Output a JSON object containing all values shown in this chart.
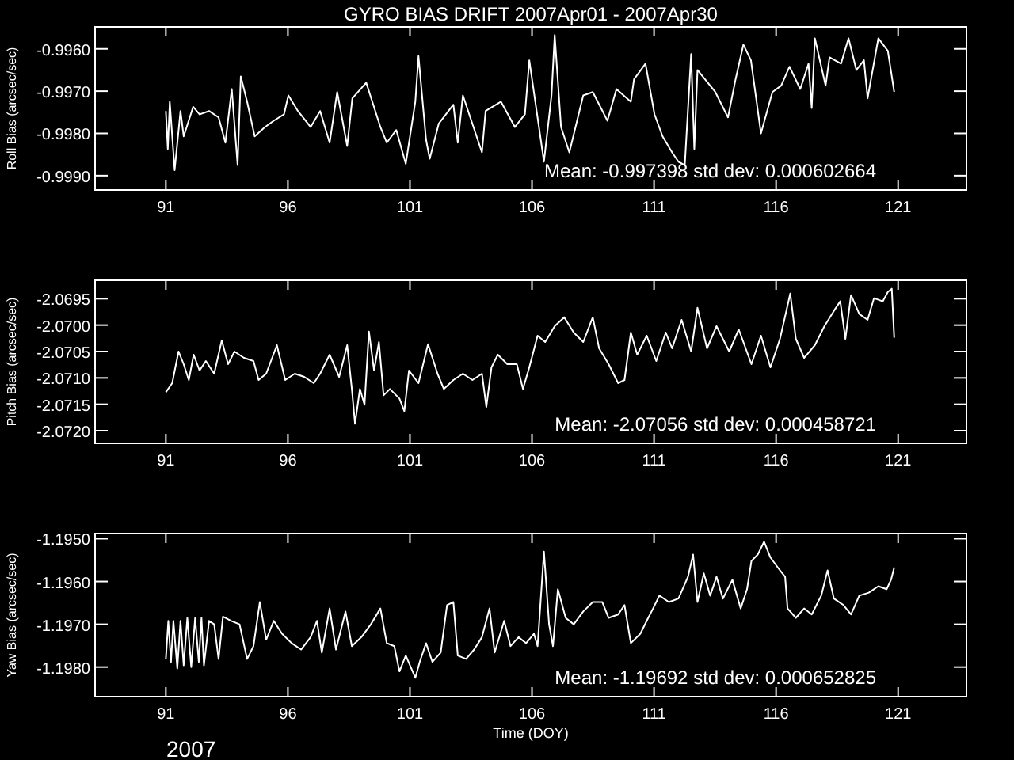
{
  "chart_data": [
    {
      "type": "line",
      "title": "GYRO BIAS DRIFT 2007Apr01 - 2007Apr30",
      "ylabel": "Roll Bias (arcsec/sec)",
      "xlim": [
        88.1,
        123.8
      ],
      "xticks": [
        91,
        96,
        101,
        106,
        111,
        116,
        121
      ],
      "ylim": [
        -0.99934,
        -0.99548
      ],
      "yticks": [
        {
          "value": -0.996,
          "label": "-0.9960"
        },
        {
          "value": -0.997,
          "label": "-0.9970"
        },
        {
          "value": -0.998,
          "label": "-0.9980"
        },
        {
          "value": -0.999,
          "label": "-0.9990"
        }
      ],
      "annotations": [
        "Mean: -0.997398 std dev: 0.000602664"
      ],
      "series": [
        {
          "color": "#ffffff",
          "x": [
            91.0,
            91.08,
            91.16,
            91.36,
            91.6,
            91.73,
            92.12,
            92.38,
            92.77,
            93.16,
            93.44,
            93.7,
            93.94,
            94.07,
            94.33,
            94.64,
            95.06,
            95.42,
            95.84,
            96.02,
            96.41,
            96.93,
            97.32,
            97.71,
            98.02,
            98.43,
            98.64,
            99.21,
            99.79,
            100.05,
            100.44,
            100.83,
            101.22,
            101.35,
            101.66,
            101.81,
            102.18,
            102.78,
            102.96,
            103.17,
            103.95,
            104.1,
            104.73,
            105.3,
            105.71,
            105.89,
            106.49,
            106.8,
            106.93,
            107.19,
            107.53,
            108.1,
            108.49,
            109.09,
            109.46,
            110.05,
            110.18,
            110.65,
            111.02,
            111.35,
            111.74,
            112.0,
            112.26,
            112.52,
            112.65,
            112.78,
            113.51,
            114.03,
            114.34,
            114.66,
            114.97,
            115.38,
            115.85,
            116.21,
            116.55,
            116.99,
            117.33,
            117.46,
            117.59,
            118.03,
            118.19,
            118.66,
            118.97,
            119.29,
            119.6,
            119.75,
            120.19,
            120.58,
            120.84
          ],
          "values": [
            -0.99747,
            -0.99837,
            -0.99725,
            -0.99887,
            -0.99747,
            -0.99807,
            -0.99737,
            -0.99755,
            -0.99747,
            -0.99762,
            -0.99822,
            -0.99695,
            -0.99875,
            -0.99665,
            -0.99725,
            -0.99807,
            -0.99785,
            -0.9977,
            -0.99755,
            -0.9971,
            -0.99747,
            -0.99785,
            -0.99747,
            -0.99822,
            -0.99702,
            -0.9983,
            -0.99717,
            -0.9968,
            -0.99785,
            -0.99822,
            -0.99792,
            -0.99872,
            -0.99725,
            -0.99617,
            -0.99815,
            -0.9986,
            -0.99777,
            -0.99732,
            -0.99822,
            -0.9971,
            -0.99845,
            -0.99747,
            -0.99725,
            -0.99785,
            -0.99755,
            -0.99627,
            -0.99867,
            -0.9971,
            -0.99567,
            -0.99785,
            -0.99845,
            -0.9971,
            -0.99702,
            -0.9977,
            -0.99695,
            -0.99725,
            -0.99672,
            -0.99635,
            -0.99755,
            -0.99807,
            -0.99845,
            -0.99867,
            -0.99875,
            -0.99612,
            -0.99837,
            -0.9965,
            -0.99702,
            -0.99762,
            -0.99672,
            -0.9959,
            -0.99627,
            -0.998,
            -0.99702,
            -0.99687,
            -0.99642,
            -0.99695,
            -0.99635,
            -0.9974,
            -0.99575,
            -0.99687,
            -0.9962,
            -0.99635,
            -0.99575,
            -0.9965,
            -0.99627,
            -0.99717,
            -0.99575,
            -0.99605,
            -0.99702
          ]
        }
      ]
    },
    {
      "type": "line",
      "ylabel": "Pitch Bias (arcsec/sec)",
      "xlim": [
        88.1,
        123.8
      ],
      "xticks": [
        91,
        96,
        101,
        106,
        111,
        116,
        121
      ],
      "ylim": [
        -2.07224,
        -2.06915
      ],
      "yticks": [
        -2.0695,
        {
          "value": -2.07,
          "label": "-2.0700"
        },
        -2.0705,
        {
          "value": -2.071,
          "label": "-2.0710"
        },
        -2.0715,
        {
          "value": -2.072,
          "label": "-2.0720"
        }
      ],
      "annotations": [
        "Mean: -2.07056 std dev: 0.000458721"
      ],
      "series": [
        {
          "color": "#ffffff",
          "x": [
            91.0,
            91.26,
            91.52,
            91.73,
            91.94,
            92.14,
            92.38,
            92.64,
            92.98,
            93.29,
            93.55,
            93.81,
            94.2,
            94.59,
            94.8,
            95.11,
            95.55,
            95.89,
            96.28,
            96.67,
            97.06,
            97.32,
            97.71,
            98.1,
            98.43,
            98.62,
            98.75,
            98.95,
            99.14,
            99.32,
            99.53,
            99.73,
            99.92,
            100.18,
            100.57,
            100.77,
            100.96,
            101.35,
            101.74,
            102.13,
            102.39,
            102.78,
            103.17,
            103.56,
            103.95,
            104.13,
            104.34,
            104.6,
            104.99,
            105.38,
            105.63,
            105.89,
            106.23,
            106.54,
            106.93,
            107.32,
            107.71,
            108.1,
            108.49,
            108.75,
            109.14,
            109.53,
            109.79,
            110.05,
            110.31,
            110.7,
            111.09,
            111.48,
            111.74,
            112.13,
            112.52,
            112.78,
            113.17,
            113.56,
            114.08,
            114.47,
            114.99,
            115.38,
            115.77,
            116.16,
            116.42,
            116.58,
            116.81,
            117.15,
            117.59,
            117.98,
            118.37,
            118.63,
            118.84,
            119.07,
            119.41,
            119.75,
            120.01,
            120.37,
            120.58,
            120.74,
            120.84
          ],
          "values": [
            -2.07127,
            -2.0711,
            -2.0705,
            -2.07074,
            -2.07104,
            -2.07056,
            -2.07086,
            -2.07068,
            -2.07092,
            -2.07029,
            -2.07074,
            -2.0705,
            -2.07062,
            -2.07068,
            -2.07104,
            -2.07092,
            -2.07038,
            -2.07104,
            -2.07092,
            -2.07098,
            -2.0711,
            -2.07092,
            -2.07056,
            -2.07098,
            -2.07038,
            -2.07121,
            -2.07187,
            -2.07121,
            -2.07151,
            -2.07012,
            -2.07086,
            -2.07032,
            -2.07133,
            -2.07121,
            -2.07139,
            -2.07163,
            -2.07086,
            -2.0711,
            -2.07036,
            -2.07092,
            -2.07121,
            -2.07104,
            -2.07092,
            -2.07104,
            -2.07092,
            -2.07155,
            -2.0708,
            -2.07056,
            -2.07074,
            -2.07074,
            -2.07121,
            -2.0708,
            -2.0702,
            -2.07032,
            -2.07002,
            -2.06985,
            -2.07014,
            -2.07032,
            -2.06985,
            -2.07044,
            -2.07074,
            -2.0711,
            -2.07104,
            -2.07014,
            -2.07056,
            -2.0702,
            -2.07068,
            -2.07014,
            -2.07044,
            -2.0699,
            -2.0705,
            -2.06967,
            -2.07044,
            -2.07002,
            -2.0705,
            -2.07008,
            -2.07074,
            -2.0702,
            -2.0708,
            -2.07026,
            -2.06973,
            -2.0694,
            -2.07026,
            -2.07062,
            -2.07038,
            -2.07002,
            -2.06973,
            -2.06955,
            -2.07026,
            -2.06943,
            -2.06979,
            -2.0699,
            -2.06949,
            -2.06955,
            -2.06937,
            -2.06931,
            -2.07024
          ]
        }
      ]
    },
    {
      "type": "line",
      "xlabel": "Time (DOY)",
      "ylabel": "Yaw Bias (arcsec/sec)",
      "xlim": [
        88.1,
        123.8
      ],
      "xticks": [
        91,
        96,
        101,
        106,
        111,
        116,
        121
      ],
      "ylim": [
        -1.19869,
        -1.19488
      ],
      "yticks": [
        {
          "value": -1.195,
          "label": "-1.1950"
        },
        {
          "value": -1.196,
          "label": "-1.1960"
        },
        {
          "value": -1.197,
          "label": "-1.1970"
        },
        {
          "value": -1.198,
          "label": "-1.1980"
        }
      ],
      "annotations": [
        "Mean: -1.19692 std dev: 0.000652825",
        "2007"
      ],
      "series": [
        {
          "color": "#ffffff",
          "x": [
            91.0,
            91.1,
            91.21,
            91.31,
            91.47,
            91.6,
            91.73,
            91.88,
            92.04,
            92.2,
            92.35,
            92.46,
            92.56,
            92.77,
            92.98,
            93.16,
            93.34,
            93.68,
            94.02,
            94.33,
            94.59,
            94.85,
            95.11,
            95.42,
            95.76,
            96.15,
            96.54,
            96.93,
            97.19,
            97.39,
            97.71,
            97.97,
            98.36,
            98.62,
            99.01,
            99.4,
            99.79,
            100.05,
            100.36,
            100.57,
            100.83,
            101.22,
            101.4,
            101.66,
            101.92,
            102.26,
            102.52,
            102.78,
            102.96,
            103.3,
            103.63,
            103.95,
            104.26,
            104.47,
            104.86,
            105.12,
            105.45,
            105.76,
            106.08,
            106.23,
            106.49,
            106.7,
            106.86,
            107.06,
            107.38,
            107.71,
            108.1,
            108.49,
            108.88,
            109.14,
            109.53,
            109.79,
            110.05,
            110.44,
            110.7,
            110.96,
            111.22,
            111.61,
            112.0,
            112.39,
            112.6,
            112.78,
            113.04,
            113.3,
            113.56,
            113.82,
            114.21,
            114.55,
            114.81,
            114.99,
            115.25,
            115.51,
            115.77,
            116.16,
            116.37,
            116.47,
            116.81,
            117.15,
            117.46,
            117.85,
            118.11,
            118.37,
            118.76,
            119.07,
            119.41,
            119.8,
            120.19,
            120.53,
            120.71,
            120.84
          ],
          "values": [
            -1.19781,
            -1.19692,
            -1.19788,
            -1.19692,
            -1.19803,
            -1.19692,
            -1.19796,
            -1.19685,
            -1.198,
            -1.19685,
            -1.19788,
            -1.19685,
            -1.19796,
            -1.19692,
            -1.197,
            -1.19781,
            -1.19682,
            -1.19692,
            -1.197,
            -1.19781,
            -1.19751,
            -1.19648,
            -1.19736,
            -1.19692,
            -1.19722,
            -1.19744,
            -1.19759,
            -1.1973,
            -1.19692,
            -1.19766,
            -1.19663,
            -1.19759,
            -1.1967,
            -1.19751,
            -1.1973,
            -1.197,
            -1.19663,
            -1.19744,
            -1.19751,
            -1.1981,
            -1.19773,
            -1.19825,
            -1.19788,
            -1.19744,
            -1.19788,
            -1.19766,
            -1.19655,
            -1.19648,
            -1.19773,
            -1.19781,
            -1.19759,
            -1.1973,
            -1.19663,
            -1.19766,
            -1.19692,
            -1.19751,
            -1.1973,
            -1.19744,
            -1.19722,
            -1.19751,
            -1.1953,
            -1.197,
            -1.19751,
            -1.19618,
            -1.19685,
            -1.197,
            -1.1967,
            -1.19648,
            -1.19648,
            -1.19685,
            -1.19677,
            -1.19655,
            -1.19744,
            -1.19722,
            -1.19692,
            -1.19663,
            -1.19633,
            -1.19648,
            -1.1964,
            -1.19589,
            -1.19537,
            -1.19648,
            -1.19581,
            -1.19633,
            -1.19589,
            -1.1964,
            -1.19596,
            -1.19663,
            -1.19618,
            -1.19552,
            -1.19537,
            -1.19507,
            -1.19544,
            -1.19574,
            -1.19589,
            -1.19663,
            -1.19685,
            -1.19663,
            -1.19677,
            -1.19633,
            -1.19574,
            -1.1964,
            -1.19655,
            -1.19677,
            -1.19633,
            -1.19626,
            -1.19611,
            -1.19618,
            -1.19596,
            -1.19567
          ]
        }
      ]
    }
  ]
}
